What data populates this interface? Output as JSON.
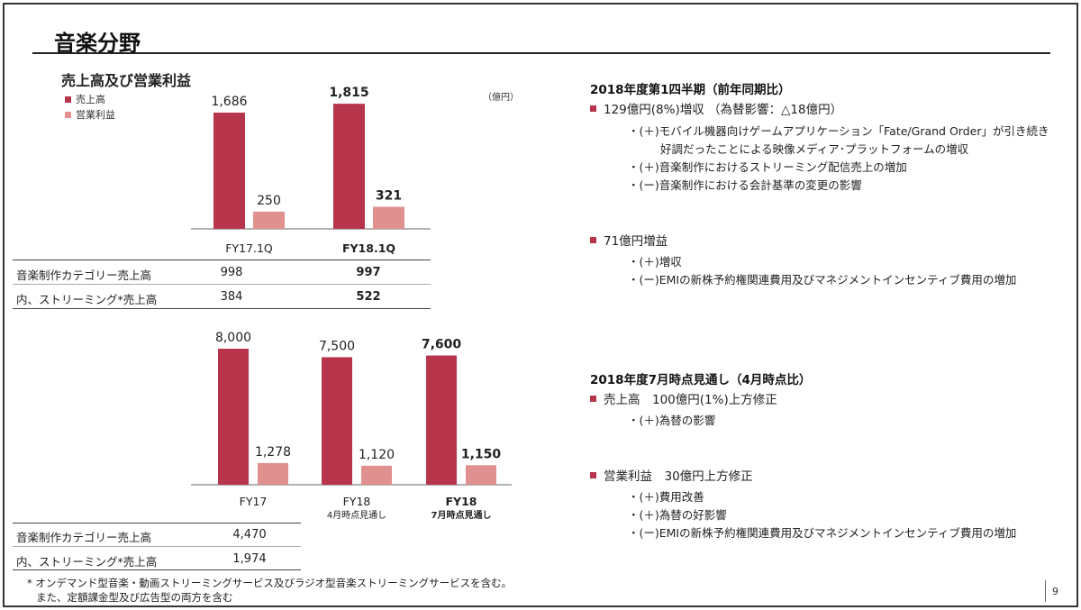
{
  "page": {
    "title": "音楽分野",
    "page_number": "9",
    "colors": {
      "sales": "#b6354b",
      "op_income": "#e0918f"
    }
  },
  "left": {
    "subtitle": "売上高及び営業利益",
    "legend": {
      "sales": "売上高",
      "op_income": "営業利益"
    },
    "unit": "（億円）",
    "table1": [
      {
        "label": "音楽制作カテゴリー売上高",
        "values": [
          "998",
          "997"
        ]
      },
      {
        "label": "内、ストリーミング*売上高",
        "values": [
          "384",
          "522"
        ]
      }
    ],
    "table2": [
      {
        "label": "音楽制作カテゴリー売上高",
        "values": [
          "4,470"
        ]
      },
      {
        "label": "内、ストリーミング*売上高",
        "values": [
          "1,974"
        ]
      }
    ],
    "footnote": {
      "line1": "* オンデマンド型音楽・動画ストリーミングサービス及びラジオ型音楽ストリーミングサービスを含む。",
      "line2": "また、定額課金型及び広告型の両方を含む"
    }
  },
  "right": {
    "section1": {
      "heading": "2018年度第1四半期（前年同期比）",
      "b1": "129億円(8%)増収 （為替影響：△18億円）",
      "b1_subs": [
        "・(＋)モバイル機器向けゲームアプリケーション「Fate/Grand Order」が引き続き",
        "好調だったことによる映像メディア･プラットフォームの増収",
        "・(＋)音楽制作におけるストリーミング配信売上の増加",
        "・(ー)音楽制作における会計基準の変更の影響"
      ],
      "b2": "71億円増益",
      "b2_subs": [
        "・(＋)増収",
        "・(ー)EMIの新株予約権関連費用及びマネジメントインセンティブ費用の増加"
      ]
    },
    "section2": {
      "heading": "2018年度7月時点見通し（4月時点比）",
      "b1": "売上高　100億円(1%)上方修正",
      "b1_subs": [
        "・(＋)為替の影響"
      ],
      "b2": "営業利益　30億円上方修正",
      "b2_subs": [
        "・(＋)費用改善",
        "・(＋)為替の好影響",
        "・(ー)EMIの新株予約権関連費用及びマネジメントインセンティブ費用の増加"
      ]
    }
  },
  "chart_data": [
    {
      "type": "bar",
      "categories": [
        "FY17.1Q",
        "FY18.1Q"
      ],
      "series": [
        {
          "name": "売上高",
          "values": [
            1686,
            1815
          ],
          "labels": [
            "1,686",
            "1,815"
          ]
        },
        {
          "name": "営業利益",
          "values": [
            250,
            321
          ],
          "labels": [
            "250",
            "321"
          ]
        }
      ],
      "bold_category": "FY18.1Q",
      "legend": "top-left",
      "unit": "（億円）"
    },
    {
      "type": "bar",
      "categories": [
        "FY17",
        "FY18",
        "FY18"
      ],
      "category_notes": [
        "",
        "4月時点見通し",
        "7月時点見通し"
      ],
      "series": [
        {
          "name": "売上高",
          "values": [
            8000,
            7500,
            7600
          ],
          "labels": [
            "8,000",
            "7,500",
            "7,600"
          ]
        },
        {
          "name": "営業利益",
          "values": [
            1278,
            1120,
            1150
          ],
          "labels": [
            "1,278",
            "1,120",
            "1,150"
          ]
        }
      ],
      "bold_index": 2
    }
  ]
}
